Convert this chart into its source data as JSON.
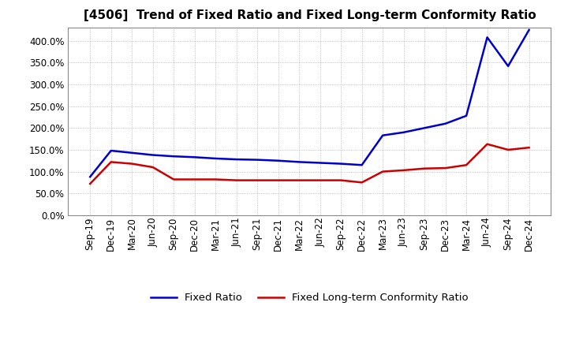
{
  "title": "[4506]  Trend of Fixed Ratio and Fixed Long-term Conformity Ratio",
  "x_labels": [
    "Sep-19",
    "Dec-19",
    "Mar-20",
    "Jun-20",
    "Sep-20",
    "Dec-20",
    "Mar-21",
    "Jun-21",
    "Sep-21",
    "Dec-21",
    "Mar-22",
    "Jun-22",
    "Sep-22",
    "Dec-22",
    "Mar-23",
    "Jun-23",
    "Sep-23",
    "Dec-23",
    "Mar-24",
    "Jun-24",
    "Sep-24",
    "Dec-24"
  ],
  "fixed_ratio": [
    88,
    148,
    143,
    138,
    135,
    133,
    130,
    128,
    127,
    125,
    122,
    120,
    118,
    115,
    183,
    190,
    200,
    210,
    228,
    408,
    342,
    425
  ],
  "fixed_lt_ratio": [
    72,
    122,
    118,
    110,
    82,
    82,
    82,
    80,
    80,
    80,
    80,
    80,
    80,
    75,
    100,
    103,
    107,
    108,
    115,
    163,
    150,
    155
  ],
  "fixed_ratio_color": "#0000CC",
  "fixed_lt_ratio_color": "#CC0000",
  "ylim": [
    0,
    430
  ],
  "yticks": [
    0,
    50,
    100,
    150,
    200,
    250,
    300,
    350,
    400
  ],
  "background_color": "#ffffff",
  "plot_bg_color": "#ffffff",
  "grid_color": "#999999",
  "legend_fixed_ratio": "Fixed Ratio",
  "legend_fixed_lt_ratio": "Fixed Long-term Conformity Ratio",
  "title_fontsize": 11,
  "tick_fontsize": 8.5,
  "legend_fontsize": 9.5
}
